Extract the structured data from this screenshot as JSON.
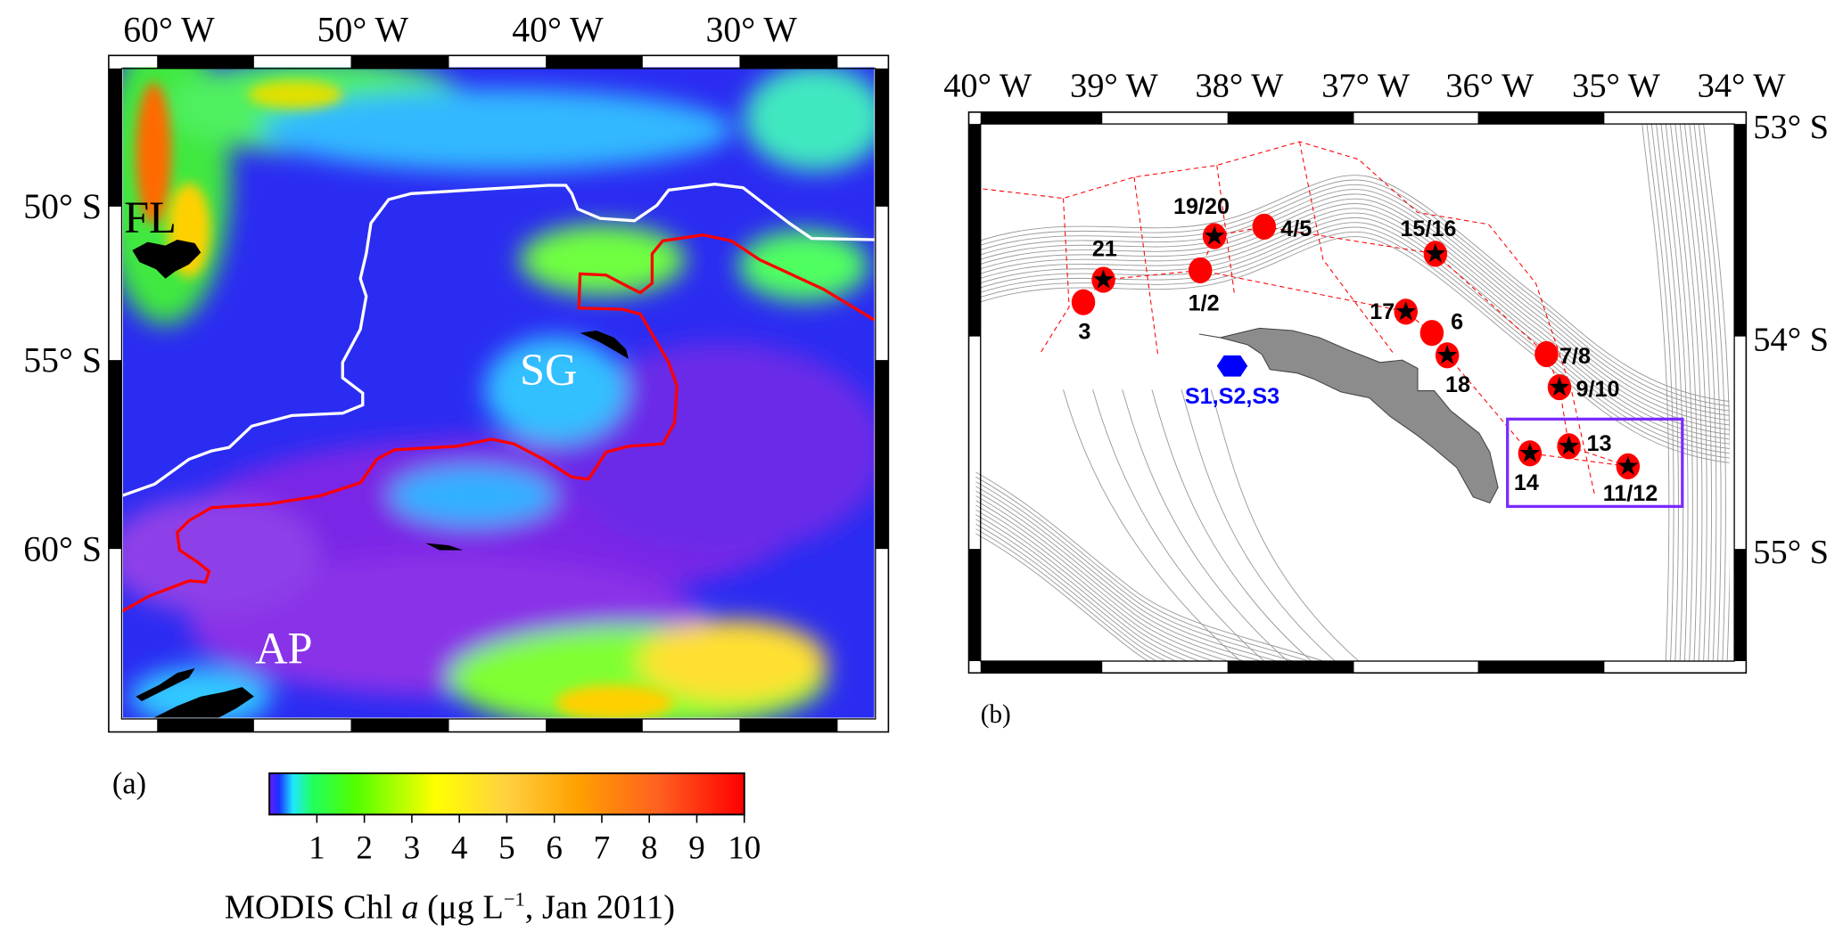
{
  "panel_a": {
    "letter": "(a)",
    "lon_labels": [
      "60° W",
      "50° W",
      "40° W",
      "30° W"
    ],
    "lat_labels": [
      "50° S",
      "55° S",
      "60° S"
    ],
    "region_labels": {
      "fl": "FL",
      "sg": "SG",
      "ap": "AP"
    },
    "front_colors": {
      "white_front": "#ffffff",
      "red_front": "#ff0000"
    },
    "colorbar": {
      "ticks": [
        "1",
        "2",
        "3",
        "4",
        "5",
        "6",
        "7",
        "8",
        "9",
        "10"
      ],
      "range": [
        0,
        10
      ],
      "title_prefix": "MODIS Chl ",
      "title_italic": "a",
      "title_unit": " (μg L",
      "title_sup": "−1",
      "title_suffix": ", Jan 2011)"
    }
  },
  "panel_b": {
    "letter": "(b)",
    "lon_labels": [
      "40° W",
      "39° W",
      "38° W",
      "37° W",
      "36° W",
      "35° W",
      "34° W"
    ],
    "lat_labels": [
      "53° S",
      "54° S",
      "55° S"
    ],
    "stations": [
      {
        "label": "19/20",
        "marker": "star"
      },
      {
        "label": "4/5",
        "marker": "dot"
      },
      {
        "label": "21",
        "marker": "star"
      },
      {
        "label": "1/2",
        "marker": "dot"
      },
      {
        "label": "3",
        "marker": "dot"
      },
      {
        "label": "15/16",
        "marker": "star"
      },
      {
        "label": "17",
        "marker": "star"
      },
      {
        "label": "6",
        "marker": "dot"
      },
      {
        "label": "18",
        "marker": "star"
      },
      {
        "label": "7/8",
        "marker": "dot"
      },
      {
        "label": "9/10",
        "marker": "star"
      },
      {
        "label": "14",
        "marker": "star"
      },
      {
        "label": "13",
        "marker": "star"
      },
      {
        "label": "11/12",
        "marker": "star"
      }
    ],
    "site_label": "S1,S2,S3",
    "colors": {
      "station": "#ff0000",
      "site": "#0000ff",
      "box": "#7a2cff",
      "track": "#ff0000"
    }
  }
}
